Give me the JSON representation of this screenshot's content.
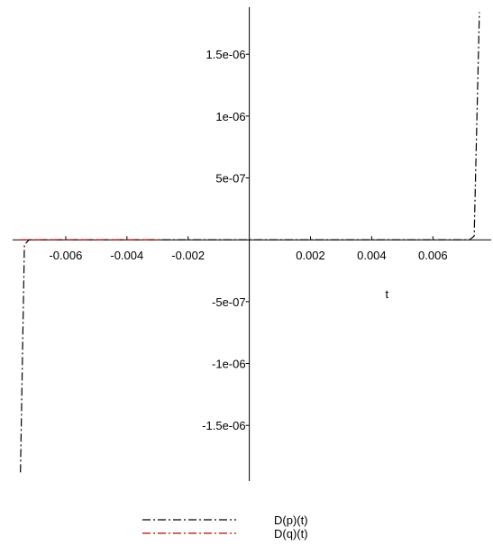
{
  "chart_data": {
    "type": "line",
    "title": "",
    "xlabel": "t",
    "ylabel": "",
    "xlim": [
      -0.0075,
      0.0077
    ],
    "ylim": [
      -1.95e-06,
      1.88e-06
    ],
    "x_ticks": [
      {
        "value": -0.006,
        "label": "-0.006"
      },
      {
        "value": -0.004,
        "label": "-0.004"
      },
      {
        "value": -0.002,
        "label": "-0.002"
      },
      {
        "value": 0.002,
        "label": "0.002"
      },
      {
        "value": 0.004,
        "label": "0.004"
      },
      {
        "value": 0.006,
        "label": "0.006"
      }
    ],
    "y_ticks": [
      {
        "value": 1.5e-06,
        "label": "1.5e-06"
      },
      {
        "value": 1e-06,
        "label": "1e-06"
      },
      {
        "value": 5e-07,
        "label": "5e-07"
      },
      {
        "value": -5e-07,
        "label": "-5e-07"
      },
      {
        "value": -1e-06,
        "label": "-1e-06"
      },
      {
        "value": -1.5e-06,
        "label": "-1.5e-06"
      }
    ],
    "grid": false,
    "legend_position": "bottom",
    "series": [
      {
        "name": "D(p)(t)",
        "color": "#000000",
        "dash": "dash-dot",
        "points": [
          [
            -0.00748,
            -1.88e-06
          ],
          [
            -0.00735,
            -4e-08
          ],
          [
            -0.0072,
            0
          ],
          [
            -0.0035,
            0
          ],
          [
            0.0,
            0
          ],
          [
            0.0035,
            0
          ],
          [
            0.0072,
            0
          ],
          [
            0.00735,
            3e-08
          ],
          [
            0.00752,
            1.84e-06
          ]
        ]
      },
      {
        "name": "D(q)(t)",
        "color": "#cc0000",
        "dash": "dash-dot",
        "points": [
          [
            -0.0075,
            0
          ],
          [
            -0.0029,
            0
          ]
        ]
      }
    ]
  }
}
